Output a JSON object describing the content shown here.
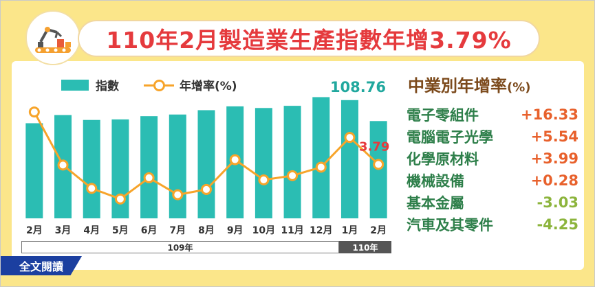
{
  "title": "110年2月製造業生產指數年增3.79%",
  "legend": {
    "bar_label": "指數",
    "line_label": "年增率(%)"
  },
  "colors": {
    "bar": "#2bbdb3",
    "line": "#f7a42a",
    "title": "#e53a3d",
    "positive": "#e8612c",
    "negative": "#8cb43c",
    "industry_name": "#2e7f4a",
    "right_title": "#7c4a1c",
    "year_109_bar": "#ffffff",
    "year_110_bar": "#555555"
  },
  "chart_data": {
    "type": "bar",
    "categories": [
      "2月",
      "3月",
      "4月",
      "5月",
      "6月",
      "7月",
      "8月",
      "9月",
      "10月",
      "11月",
      "12月",
      "1月",
      "2月"
    ],
    "series": [
      {
        "name": "指數",
        "type": "bar",
        "values": [
          87.5,
          95.0,
          90.5,
          91.0,
          94.0,
          95.5,
          99.5,
          103.0,
          101.5,
          103.5,
          111.5,
          108.76,
          89.5
        ]
      },
      {
        "name": "年增率(%)",
        "type": "line",
        "values": [
          28.5,
          3.5,
          -7.5,
          -12.5,
          -2.5,
          -10.5,
          -8.0,
          6.0,
          -3.5,
          -1.5,
          2.5,
          16.5,
          3.79
        ]
      }
    ],
    "data_labels": [
      {
        "index": 11,
        "series": "指數",
        "text": "108.76"
      },
      {
        "index": 12,
        "series": "年增率(%)",
        "text": "3.79"
      }
    ],
    "year_groups": [
      {
        "label": "109年",
        "start": 0,
        "end": 10
      },
      {
        "label": "110年",
        "start": 11,
        "end": 12
      }
    ],
    "bar_axis_range": [
      0,
      120
    ],
    "line_axis_range": [
      -20,
      35
    ],
    "grid": false,
    "legend_position": "top-left"
  },
  "right_panel": {
    "title": "中業別年增率",
    "unit": "(%)",
    "items": [
      {
        "name": "電子零組件",
        "value": "+16.33",
        "sign": "positive"
      },
      {
        "name": "電腦電子光學",
        "value": "+5.54",
        "sign": "positive"
      },
      {
        "name": "化學原材料",
        "value": "+3.99",
        "sign": "positive"
      },
      {
        "name": "機械設備",
        "value": "+0.28",
        "sign": "positive"
      },
      {
        "name": "基本金屬",
        "value": "-3.03",
        "sign": "negative"
      },
      {
        "name": "汽車及其零件",
        "value": "-4.25",
        "sign": "negative"
      }
    ]
  },
  "fulltext_button": "全文閱讀",
  "logo_icon": "factory-robot-icon"
}
